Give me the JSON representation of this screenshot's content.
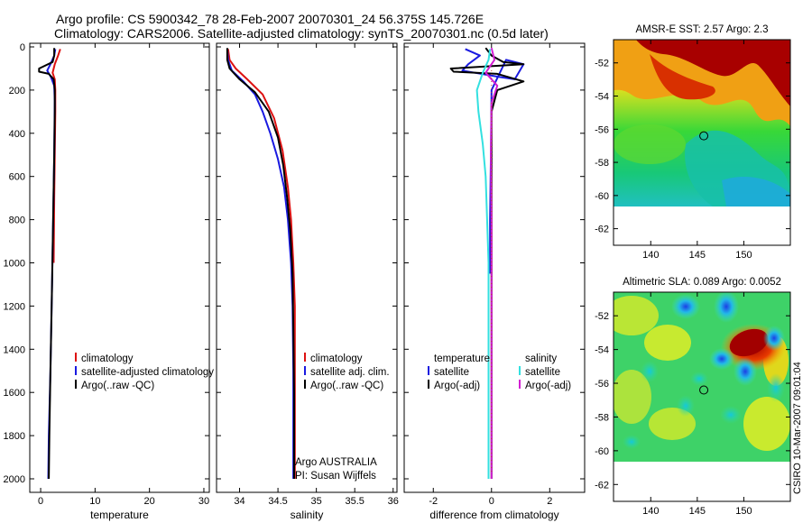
{
  "header": {
    "title_line1": "Argo profile: CS 5900342_78 28-Feb-2007 20070301_24 56.375S 145.726E",
    "title_line2": "Climatology: CARS2006. Satellite-adjusted climatology: synTS_20070301.nc (0.5d later)"
  },
  "credit": "CSIRO 10-Mar-2007 09:01:04",
  "colors": {
    "climatology": "#dd1111",
    "satellite": "#1a1ae0",
    "argo": "#000000",
    "sal_satellite": "#33e0e0",
    "sal_argo": "#d31fd3"
  },
  "chart_data": [
    {
      "type": "line",
      "id": "temperature",
      "xlabel": "temperature",
      "xlim": [
        -2,
        31
      ],
      "ylim": [
        2080,
        0
      ],
      "xticks": [
        0,
        10,
        20,
        30
      ],
      "yticks": [
        0,
        200,
        400,
        600,
        800,
        1000,
        1200,
        1400,
        1600,
        1800,
        2000
      ],
      "legend": [
        "climatology",
        "satellite-adjusted climatology",
        "Argo(..raw -QC)"
      ],
      "series": [
        {
          "name": "climatology",
          "color_key": "climatology",
          "points": [
            [
              3.6,
              10
            ],
            [
              3.2,
              40
            ],
            [
              2.6,
              80
            ],
            [
              2.2,
              120
            ],
            [
              2.6,
              150
            ],
            [
              2.7,
              200
            ],
            [
              2.7,
              300
            ],
            [
              2.6,
              500
            ],
            [
              2.5,
              700
            ],
            [
              2.4,
              1000
            ]
          ]
        },
        {
          "name": "satellite-adjusted climatology",
          "color_key": "satellite",
          "points": [
            [
              2.7,
              10
            ],
            [
              2.5,
              40
            ],
            [
              1.8,
              80
            ],
            [
              1.2,
              110
            ],
            [
              1.9,
              140
            ],
            [
              2.5,
              180
            ],
            [
              2.6,
              250
            ],
            [
              2.5,
              500
            ],
            [
              2.3,
              800
            ],
            [
              2.1,
              1100
            ],
            [
              1.8,
              1500
            ],
            [
              1.5,
              1800
            ],
            [
              1.4,
              2000
            ]
          ]
        },
        {
          "name": "Argo(..raw -QC)",
          "color_key": "argo",
          "points": [
            [
              2.5,
              5
            ],
            [
              2.5,
              40
            ],
            [
              2.2,
              70
            ],
            [
              -0.3,
              100
            ],
            [
              -0.3,
              115
            ],
            [
              1.5,
              125
            ],
            [
              2.4,
              150
            ],
            [
              2.6,
              200
            ],
            [
              2.6,
              300
            ],
            [
              2.5,
              500
            ],
            [
              2.3,
              800
            ],
            [
              2.1,
              1100
            ],
            [
              1.8,
              1500
            ],
            [
              1.6,
              1800
            ],
            [
              1.5,
              2000
            ]
          ]
        }
      ]
    },
    {
      "type": "line",
      "id": "salinity",
      "xlabel": "salinity",
      "xlim": [
        33.7,
        36.05
      ],
      "ylim": [
        2080,
        0
      ],
      "xticks": [
        34,
        34.5,
        35,
        35.5,
        36
      ],
      "legend": [
        "climatology",
        "satellite adj. clim.",
        "Argo(..raw -QC)"
      ],
      "annotation": [
        "Argo AUSTRALIA",
        "PI: Susan Wijffels"
      ],
      "series": [
        {
          "name": "climatology",
          "color_key": "climatology",
          "points": [
            [
              33.85,
              10
            ],
            [
              33.87,
              60
            ],
            [
              33.95,
              100
            ],
            [
              34.1,
              150
            ],
            [
              34.3,
              220
            ],
            [
              34.45,
              330
            ],
            [
              34.56,
              480
            ],
            [
              34.63,
              650
            ],
            [
              34.67,
              800
            ],
            [
              34.7,
              1000
            ],
            [
              34.72,
              1200
            ],
            [
              34.72,
              1500
            ],
            [
              34.72,
              1800
            ],
            [
              34.72,
              2000
            ]
          ]
        },
        {
          "name": "satellite adj. clim.",
          "color_key": "satellite",
          "points": [
            [
              33.84,
              10
            ],
            [
              33.85,
              60
            ],
            [
              33.9,
              110
            ],
            [
              34.05,
              160
            ],
            [
              34.2,
              220
            ],
            [
              34.3,
              300
            ],
            [
              34.4,
              400
            ],
            [
              34.5,
              520
            ],
            [
              34.58,
              650
            ],
            [
              34.63,
              800
            ],
            [
              34.67,
              1000
            ],
            [
              34.69,
              1200
            ],
            [
              34.7,
              1500
            ],
            [
              34.7,
              1800
            ],
            [
              34.7,
              2000
            ]
          ]
        },
        {
          "name": "Argo(..raw -QC)",
          "color_key": "argo",
          "points": [
            [
              33.84,
              5
            ],
            [
              33.84,
              60
            ],
            [
              33.87,
              100
            ],
            [
              34.0,
              150
            ],
            [
              34.2,
              210
            ],
            [
              34.38,
              300
            ],
            [
              34.5,
              420
            ],
            [
              34.57,
              550
            ],
            [
              34.62,
              700
            ],
            [
              34.66,
              850
            ],
            [
              34.69,
              1050
            ],
            [
              34.7,
              1300
            ],
            [
              34.71,
              1600
            ],
            [
              34.71,
              2000
            ]
          ]
        }
      ]
    },
    {
      "type": "line",
      "id": "difference",
      "xlabel": "difference from climatology",
      "xlim": [
        -3,
        3.2
      ],
      "ylim": [
        2080,
        0
      ],
      "xticks": [
        -2,
        0,
        2
      ],
      "legend_left_title": "temperature",
      "legend_right_title": "salinity",
      "legend": [
        "satellite",
        "Argo(-adj)",
        "satellite",
        "Argo(-adj)"
      ],
      "series": [
        {
          "name": "temperature satellite",
          "color_key": "satellite",
          "points": [
            [
              -0.9,
              10
            ],
            [
              -0.4,
              40
            ],
            [
              -0.8,
              80
            ],
            [
              -1.0,
              110
            ],
            [
              0.3,
              140
            ],
            [
              0.8,
              150
            ],
            [
              1.1,
              80
            ],
            [
              0.5,
              60
            ],
            [
              0.0,
              200
            ],
            [
              -0.02,
              500
            ],
            [
              -0.05,
              800
            ],
            [
              -0.05,
              1050
            ]
          ]
        },
        {
          "name": "temperature Argo(-adj)",
          "color_key": "argo",
          "points": [
            [
              -0.2,
              5
            ],
            [
              0.0,
              40
            ],
            [
              0.4,
              70
            ],
            [
              1.1,
              80
            ],
            [
              -1.4,
              100
            ],
            [
              -1.3,
              115
            ],
            [
              0.2,
              125
            ],
            [
              1.1,
              160
            ],
            [
              0.2,
              200
            ],
            [
              0.0,
              300
            ],
            [
              0.0,
              600
            ],
            [
              0.0,
              1000
            ],
            [
              0.0,
              1400
            ],
            [
              0.0,
              1700
            ],
            [
              0.0,
              2000
            ]
          ]
        },
        {
          "name": "salinity satellite",
          "color_key": "sal_satellite",
          "points": [
            [
              -0.05,
              10
            ],
            [
              -0.1,
              60
            ],
            [
              -0.3,
              120
            ],
            [
              -0.5,
              200
            ],
            [
              -0.45,
              300
            ],
            [
              -0.3,
              450
            ],
            [
              -0.2,
              600
            ],
            [
              -0.15,
              800
            ],
            [
              -0.1,
              1000
            ],
            [
              -0.1,
              1300
            ],
            [
              -0.1,
              1700
            ],
            [
              -0.1,
              2000
            ]
          ]
        },
        {
          "name": "salinity Argo(-adj)",
          "color_key": "sal_argo",
          "points": [
            [
              0.0,
              5
            ],
            [
              0.1,
              60
            ],
            [
              -0.2,
              120
            ],
            [
              0.2,
              180
            ],
            [
              0.0,
              260
            ],
            [
              -0.02,
              500
            ],
            [
              0.0,
              800
            ],
            [
              0.0,
              1200
            ],
            [
              0.0,
              1600
            ],
            [
              0.0,
              2000
            ]
          ]
        }
      ]
    },
    {
      "type": "heatmap",
      "id": "amsr-sst",
      "title": "AMSR-E SST: 2.57 Argo: 2.3",
      "xlim": [
        136,
        155
      ],
      "ylim": [
        -63,
        -50.6
      ],
      "xticks": [
        140,
        145,
        150
      ],
      "yticks": [
        -52,
        -54,
        -56,
        -58,
        -60,
        -62
      ],
      "data_ylim": [
        -63,
        -60
      ],
      "marker": [
        145.7,
        -56.4
      ]
    },
    {
      "type": "heatmap",
      "id": "altimetric-sla",
      "title": "Altimetric SLA: 0.089 Argo: 0.0052",
      "xlim": [
        136,
        155
      ],
      "ylim": [
        -63,
        -50.6
      ],
      "xticks": [
        140,
        145,
        150
      ],
      "yticks": [
        -52,
        -54,
        -56,
        -58,
        -60,
        -62
      ],
      "marker": [
        145.7,
        -56.4
      ]
    }
  ]
}
